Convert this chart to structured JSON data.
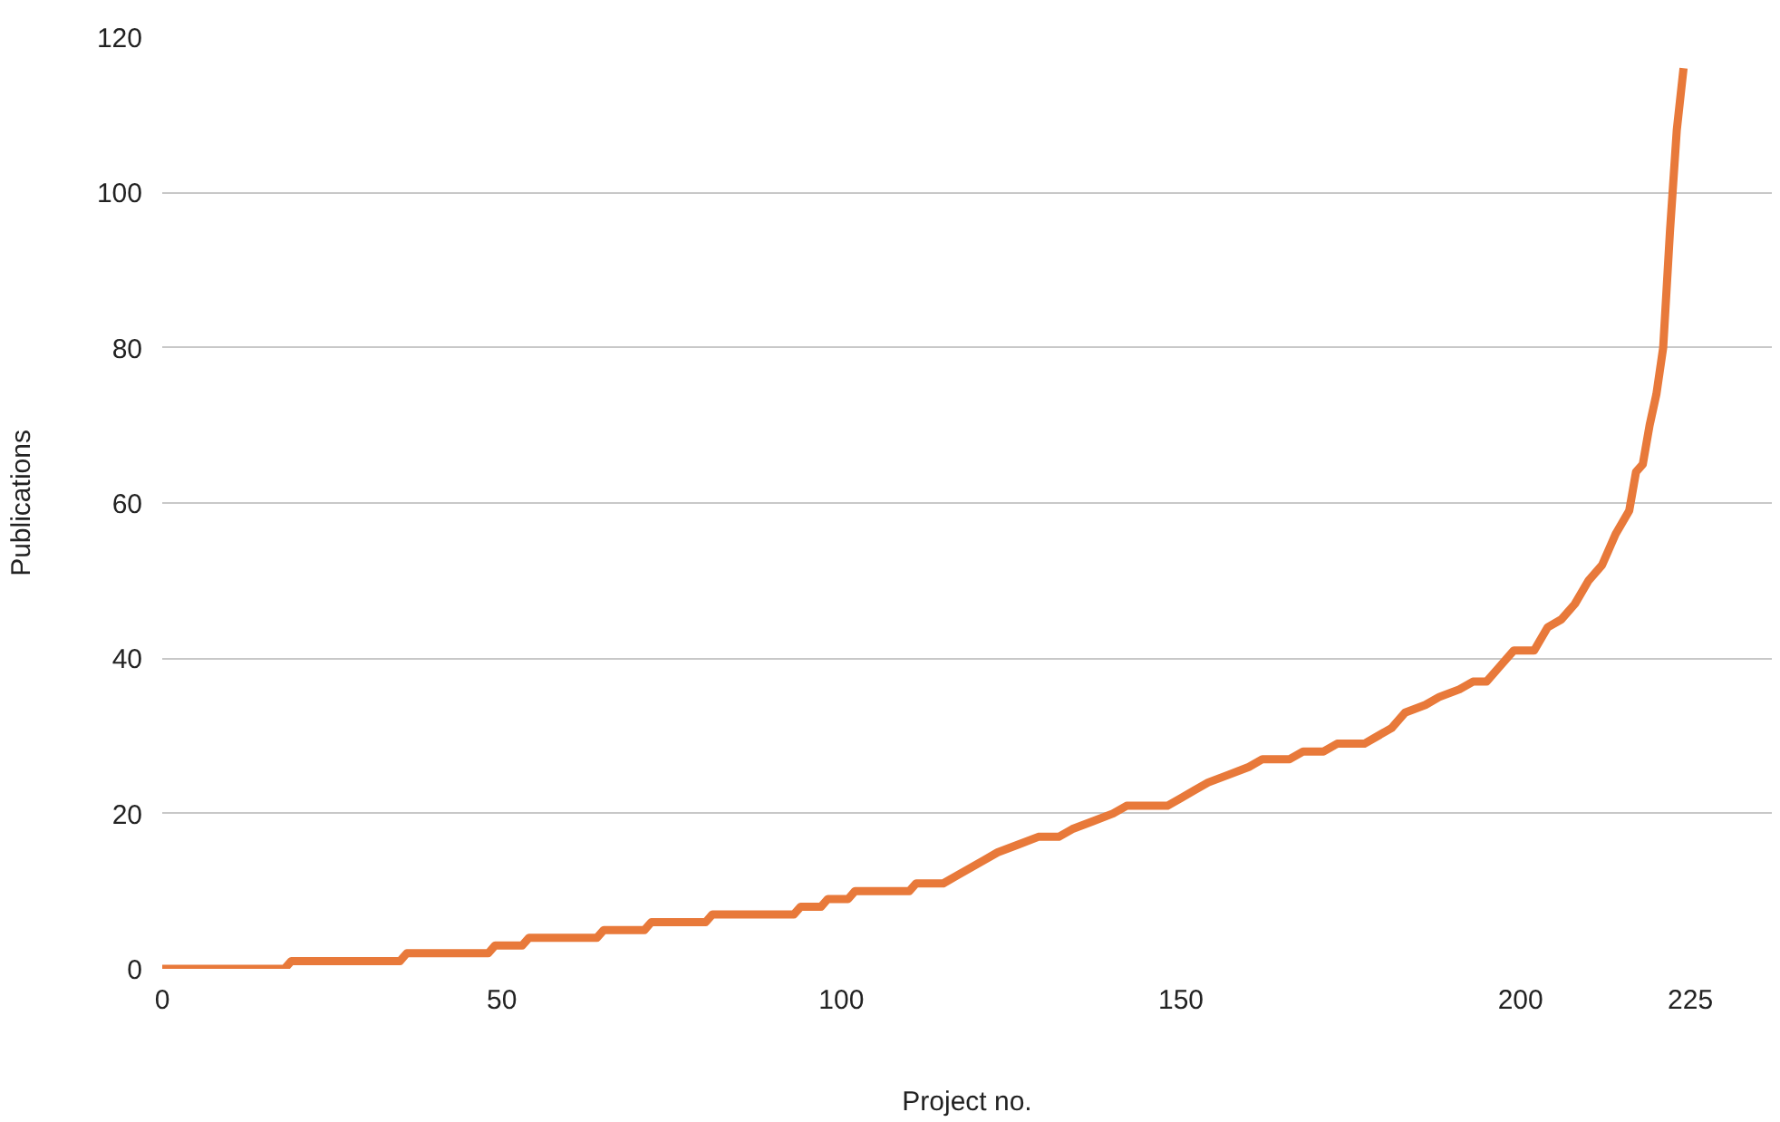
{
  "chart_data": {
    "type": "line",
    "xlabel": "Project no.",
    "ylabel": "Publications",
    "xlim": [
      0,
      237
    ],
    "xticks": [
      0,
      50,
      100,
      150,
      200,
      225
    ],
    "ylim": [
      0,
      120
    ],
    "yticks": [
      0,
      20,
      40,
      60,
      80,
      100,
      120
    ],
    "grid": "y",
    "marker": "none",
    "line_style": "solid",
    "x": [
      0,
      18,
      19,
      35,
      36,
      48,
      49,
      53,
      54,
      64,
      65,
      71,
      72,
      80,
      81,
      93,
      94,
      97,
      98,
      101,
      102,
      110,
      111,
      115,
      117,
      119,
      121,
      123,
      126,
      129,
      132,
      134,
      137,
      140,
      142,
      148,
      150,
      152,
      154,
      157,
      160,
      162,
      166,
      168,
      171,
      173,
      177,
      179,
      181,
      183,
      186,
      188,
      191,
      193,
      195,
      197,
      199,
      202,
      204,
      206,
      208,
      210,
      212,
      214,
      216,
      217,
      218,
      219,
      220,
      221,
      222,
      223,
      224
    ],
    "series": [
      {
        "color": "#e8793a",
        "values": [
          0,
          0,
          1,
          1,
          2,
          2,
          3,
          3,
          4,
          4,
          5,
          5,
          6,
          6,
          7,
          7,
          8,
          8,
          9,
          9,
          10,
          10,
          11,
          11,
          12,
          13,
          14,
          15,
          16,
          17,
          17,
          18,
          19,
          20,
          21,
          21,
          22,
          23,
          24,
          25,
          26,
          27,
          27,
          28,
          28,
          29,
          29,
          30,
          31,
          33,
          34,
          35,
          36,
          37,
          37,
          39,
          41,
          41,
          44,
          45,
          47,
          50,
          52,
          56,
          59,
          64,
          65,
          70,
          74,
          80,
          95,
          108,
          116
        ]
      }
    ]
  }
}
